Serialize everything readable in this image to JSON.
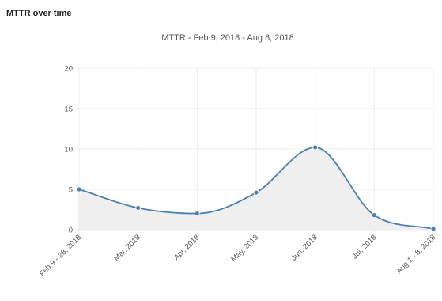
{
  "section": {
    "title": "MTTR over time"
  },
  "chart_data": {
    "type": "line",
    "title": "MTTR - Feb 9, 2018 - Aug 8, 2018",
    "xlabel": "",
    "ylabel": "",
    "categories": [
      "Feb 9 - 28, 2018",
      "Mar, 2018",
      "Apr, 2018",
      "May, 2018",
      "Jun, 2018",
      "Jul, 2018",
      "Aug 1 - 8, 2018"
    ],
    "series": [
      {
        "values": [
          5.0,
          2.7,
          2.0,
          4.6,
          10.2,
          1.8,
          0.1
        ]
      }
    ],
    "ylim": [
      0,
      20
    ],
    "yticks": [
      0,
      5,
      10,
      15,
      20
    ],
    "smooth": true,
    "area_fill": true,
    "grid": true,
    "legend": "none",
    "colors": {
      "line": "#4a7fb0",
      "point": "#4a7fb0",
      "fill": "#efefef",
      "grid": "#ececec",
      "axis": "#999999",
      "text": "#555555"
    }
  }
}
